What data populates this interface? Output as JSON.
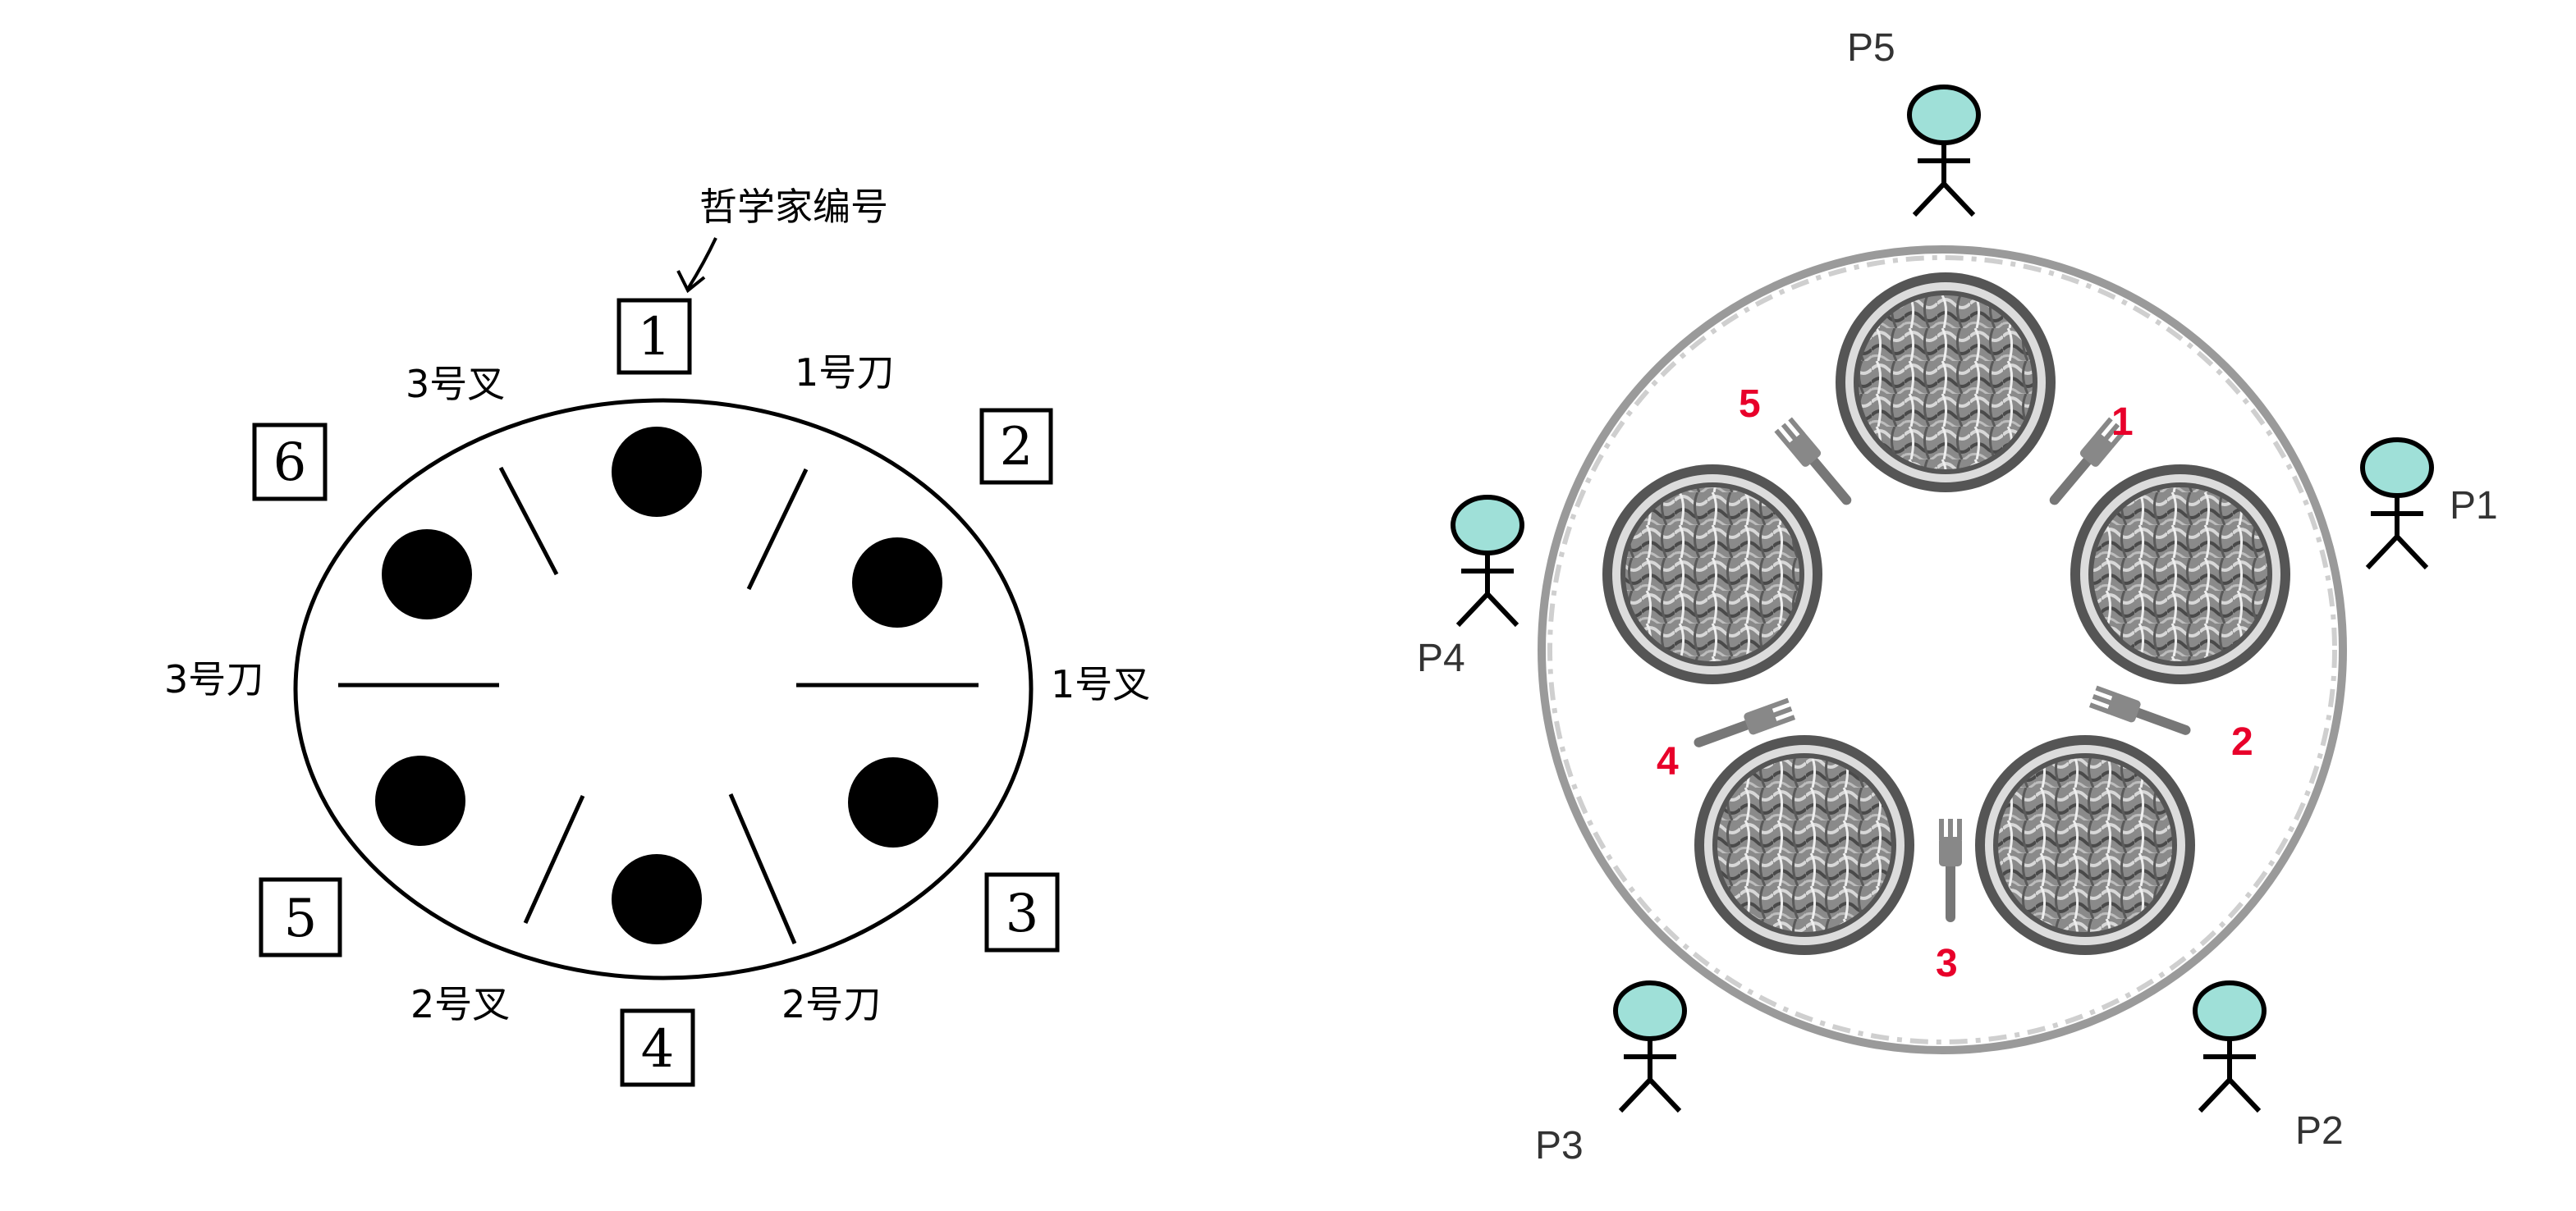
{
  "left_diagram": {
    "annotation": "哲学家编号",
    "philosopher_numbers": [
      "1",
      "2",
      "3",
      "4",
      "5",
      "6"
    ],
    "utensil_labels": {
      "fork_3": "3号叉",
      "knife_1": "1号刀",
      "knife_3": "3号刀",
      "fork_1": "1号叉",
      "fork_2": "2号叉",
      "knife_2": "2号刀"
    }
  },
  "right_diagram": {
    "philosophers": [
      "P1",
      "P2",
      "P3",
      "P4",
      "P5"
    ],
    "fork_numbers": [
      "1",
      "2",
      "3",
      "4",
      "5"
    ],
    "colors": {
      "person_head": "#9fe0d8",
      "fork_number": "#e8002a",
      "plate": "#555555"
    }
  }
}
